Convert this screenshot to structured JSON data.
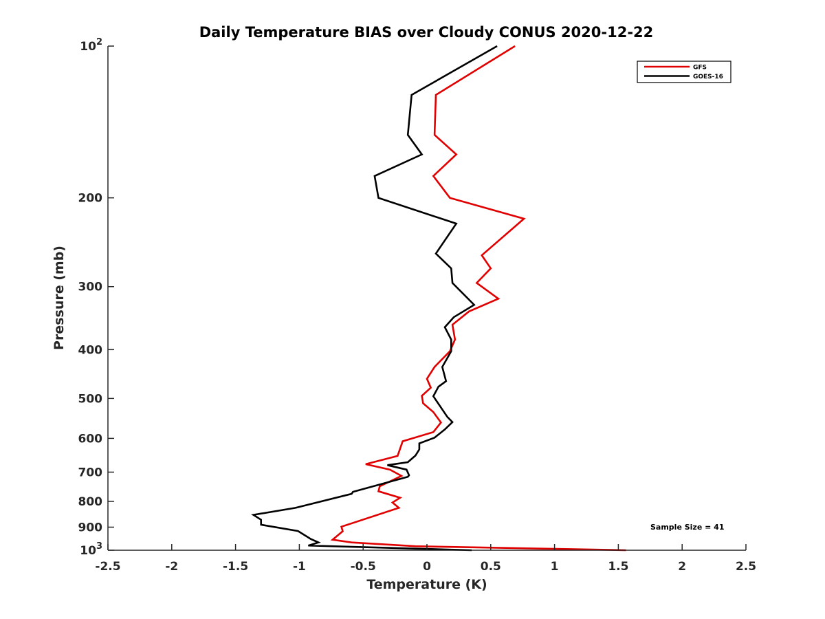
{
  "chart_data": {
    "type": "line",
    "title": "Daily Temperature BIAS over Cloudy CONUS 2020-12-22",
    "xlabel": "Temperature (K)",
    "ylabel": "Pressure (mb)",
    "xlim": [
      -2.5,
      2.5
    ],
    "ylim": [
      100,
      1000
    ],
    "y_scale": "log",
    "y_reversed": true,
    "grid": false,
    "legend_position": "top-right",
    "x_ticks": [
      -2.5,
      -2,
      -1.5,
      -1,
      -0.5,
      0,
      0.5,
      1,
      1.5,
      2,
      2.5
    ],
    "x_tick_labels": [
      "-2.5",
      "-2",
      "-1.5",
      "-1",
      "-0.5",
      "0",
      "0.5",
      "1",
      "1.5",
      "2",
      "2.5"
    ],
    "y_ticks": [
      {
        "value": 100,
        "base": "10",
        "exp": "2"
      },
      {
        "value": 200,
        "label": "200"
      },
      {
        "value": 300,
        "label": "300"
      },
      {
        "value": 400,
        "label": "400"
      },
      {
        "value": 500,
        "label": "500"
      },
      {
        "value": 600,
        "label": "600"
      },
      {
        "value": 700,
        "label": "700"
      },
      {
        "value": 800,
        "label": "800"
      },
      {
        "value": 900,
        "label": "900"
      },
      {
        "value": 1000,
        "base": "10",
        "exp": "3"
      }
    ],
    "series": [
      {
        "name": "GFS",
        "color": "#e00000",
        "points": [
          [
            0.69,
            100
          ],
          [
            0.07,
            125
          ],
          [
            0.06,
            150
          ],
          [
            0.23,
            164
          ],
          [
            0.05,
            181
          ],
          [
            0.18,
            200
          ],
          [
            0.76,
            220
          ],
          [
            0.43,
            260
          ],
          [
            0.5,
            276
          ],
          [
            0.39,
            295
          ],
          [
            0.56,
            317
          ],
          [
            0.33,
            336
          ],
          [
            0.2,
            357
          ],
          [
            0.22,
            382
          ],
          [
            0.18,
            403
          ],
          [
            0.06,
            433
          ],
          [
            0.0,
            457
          ],
          [
            0.03,
            476
          ],
          [
            -0.04,
            494
          ],
          [
            -0.03,
            511
          ],
          [
            0.05,
            532
          ],
          [
            0.11,
            558
          ],
          [
            0.05,
            583
          ],
          [
            -0.19,
            608
          ],
          [
            -0.23,
            650
          ],
          [
            -0.48,
            675
          ],
          [
            -0.29,
            692
          ],
          [
            -0.2,
            712
          ],
          [
            -0.37,
            747
          ],
          [
            -0.38,
            764
          ],
          [
            -0.21,
            787
          ],
          [
            -0.27,
            804
          ],
          [
            -0.22,
            824
          ],
          [
            -0.67,
            898
          ],
          [
            -0.66,
            917
          ],
          [
            -0.74,
            953
          ],
          [
            -0.59,
            965
          ],
          [
            -0.09,
            982
          ],
          [
            1.56,
            1000
          ]
        ]
      },
      {
        "name": "GOES-16",
        "color": "#000000",
        "points": [
          [
            0.55,
            100
          ],
          [
            -0.12,
            125
          ],
          [
            -0.15,
            150
          ],
          [
            -0.04,
            164
          ],
          [
            -0.41,
            181
          ],
          [
            -0.38,
            200
          ],
          [
            0.23,
            225
          ],
          [
            0.07,
            258
          ],
          [
            0.19,
            276
          ],
          [
            0.2,
            295
          ],
          [
            0.37,
            326
          ],
          [
            0.21,
            345
          ],
          [
            0.14,
            361
          ],
          [
            0.19,
            382
          ],
          [
            0.19,
            403
          ],
          [
            0.12,
            433
          ],
          [
            0.15,
            462
          ],
          [
            0.09,
            474
          ],
          [
            0.05,
            495
          ],
          [
            0.16,
            544
          ],
          [
            0.2,
            557
          ],
          [
            0.14,
            576
          ],
          [
            0.06,
            598
          ],
          [
            -0.06,
            614
          ],
          [
            -0.06,
            631
          ],
          [
            -0.09,
            649
          ],
          [
            -0.15,
            669
          ],
          [
            -0.31,
            678
          ],
          [
            -0.16,
            692
          ],
          [
            -0.14,
            710
          ],
          [
            -0.15,
            715
          ],
          [
            -0.58,
            766
          ],
          [
            -0.59,
            773
          ],
          [
            -1.03,
            824
          ],
          [
            -1.36,
            851
          ],
          [
            -1.3,
            870
          ],
          [
            -1.3,
            890
          ],
          [
            -1.01,
            916
          ],
          [
            -0.91,
            950
          ],
          [
            -0.85,
            965
          ],
          [
            -0.93,
            979
          ],
          [
            0.35,
            1000
          ]
        ]
      }
    ],
    "annotations": [
      {
        "text": "Sample Size = 41"
      }
    ]
  }
}
